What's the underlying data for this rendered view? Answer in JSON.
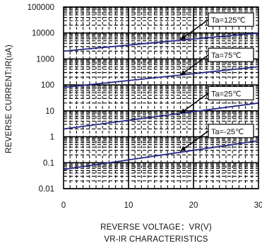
{
  "chart_data": {
    "type": "line",
    "title": "",
    "subtitle": "VR-IR CHARACTERISTICS",
    "xlabel": "REVERSE VOLTAGE：VR(V)",
    "ylabel": "REVERSE CURRENT:IR(uA)",
    "x_scale": "linear",
    "y_scale": "log",
    "xlim": [
      0,
      30
    ],
    "ylim": [
      0.01,
      100000
    ],
    "x_ticks": [
      "0",
      "10",
      "20",
      "30"
    ],
    "y_ticks": [
      "0.01",
      "0.1",
      "1",
      "10",
      "100",
      "1000",
      "10000",
      "100000"
    ],
    "series": [
      {
        "name": "Ta=125℃",
        "x": [
          0,
          30
        ],
        "y": [
          2000,
          10000
        ]
      },
      {
        "name": "Ta=75℃",
        "x": [
          0,
          30
        ],
        "y": [
          80,
          500
        ]
      },
      {
        "name": "Ta=25℃",
        "x": [
          0,
          30
        ],
        "y": [
          2,
          20
        ]
      },
      {
        "name": "Ta=-25℃",
        "x": [
          0,
          30
        ],
        "y": [
          0.055,
          0.7
        ]
      }
    ],
    "annotation_points": [
      {
        "series": "Ta=125℃",
        "x": 18,
        "y": 5500
      },
      {
        "series": "Ta=75℃",
        "x": 18,
        "y": 240
      },
      {
        "series": "Ta=25℃",
        "x": 18,
        "y": 8
      },
      {
        "series": "Ta=-25℃",
        "x": 18,
        "y": 0.28
      }
    ],
    "grid": true,
    "line_color": "#2a2a8a"
  }
}
